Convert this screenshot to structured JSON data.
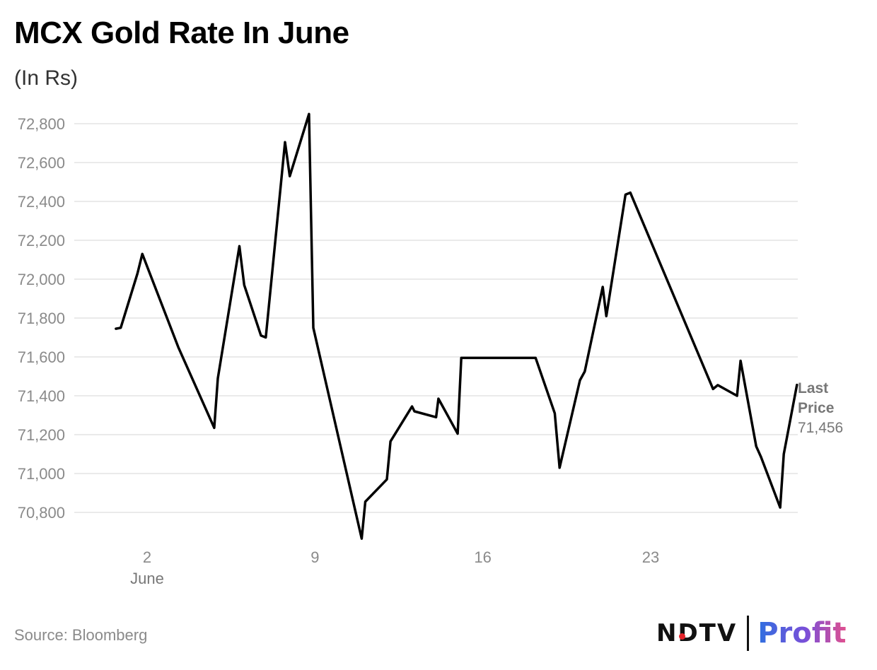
{
  "header": {
    "title": "MCX Gold Rate In June",
    "subtitle": "(In Rs)"
  },
  "chart_data": {
    "type": "line",
    "title": "MCX Gold Rate In June",
    "subtitle": "(In Rs)",
    "xlabel": "June",
    "ylabel": "",
    "x_unit": "day of June",
    "xlim": [
      0.2,
      29.1
    ],
    "ylim": [
      70640,
      72880
    ],
    "yticks": [
      70800,
      71000,
      71200,
      71400,
      71600,
      71800,
      72000,
      72200,
      72400,
      72600,
      72800
    ],
    "ytick_labels": [
      "70,800",
      "71,000",
      "71,200",
      "71,400",
      "71,600",
      "71,800",
      "72,000",
      "72,200",
      "72,400",
      "72,600",
      "72,800"
    ],
    "xticks": [
      2,
      9,
      16,
      23
    ],
    "xtick_labels": [
      "2",
      "9",
      "16",
      "23"
    ],
    "grid": "horizontal",
    "series": [
      {
        "name": "MCX Gold",
        "color": "#000000",
        "points": [
          [
            0.7,
            71745
          ],
          [
            0.9,
            71750
          ],
          [
            1.6,
            72030
          ],
          [
            1.8,
            72130
          ],
          [
            3.3,
            71650
          ],
          [
            4.8,
            71235
          ],
          [
            4.95,
            71490
          ],
          [
            5.85,
            72170
          ],
          [
            6.05,
            71970
          ],
          [
            6.75,
            71710
          ],
          [
            6.95,
            71700
          ],
          [
            7.75,
            72705
          ],
          [
            7.95,
            72530
          ],
          [
            8.75,
            72850
          ],
          [
            8.93,
            71750
          ],
          [
            10.95,
            70665
          ],
          [
            11.1,
            70855
          ],
          [
            12.0,
            70970
          ],
          [
            12.15,
            71165
          ],
          [
            13.05,
            71345
          ],
          [
            13.15,
            71320
          ],
          [
            14.05,
            71290
          ],
          [
            14.15,
            71385
          ],
          [
            14.95,
            71205
          ],
          [
            15.1,
            71595
          ],
          [
            18.2,
            71595
          ],
          [
            19.0,
            71310
          ],
          [
            19.2,
            71030
          ],
          [
            20.05,
            71480
          ],
          [
            20.25,
            71525
          ],
          [
            21.0,
            71960
          ],
          [
            21.15,
            71810
          ],
          [
            21.95,
            72435
          ],
          [
            22.15,
            72445
          ],
          [
            25.6,
            71435
          ],
          [
            25.8,
            71455
          ],
          [
            26.6,
            71400
          ],
          [
            26.75,
            71580
          ],
          [
            27.4,
            71140
          ],
          [
            27.6,
            71085
          ],
          [
            28.4,
            70825
          ],
          [
            28.55,
            71100
          ],
          [
            29.1,
            71456
          ]
        ]
      }
    ],
    "annotations": [
      {
        "text": "Last Price",
        "value": "71,456",
        "placement": "right of last point"
      }
    ]
  },
  "annotation": {
    "line1": "Last",
    "line2": "Price",
    "value": "71,456"
  },
  "footer": {
    "source": "Source: Bloomberg",
    "logo_left": "NDTV",
    "logo_right": "Profit"
  },
  "colors": {
    "line": "#000000",
    "grid": "#dddddd",
    "tick_text": "#8a8a8a",
    "annotation": "#777777",
    "logo_red_dot": "#e3242b"
  }
}
